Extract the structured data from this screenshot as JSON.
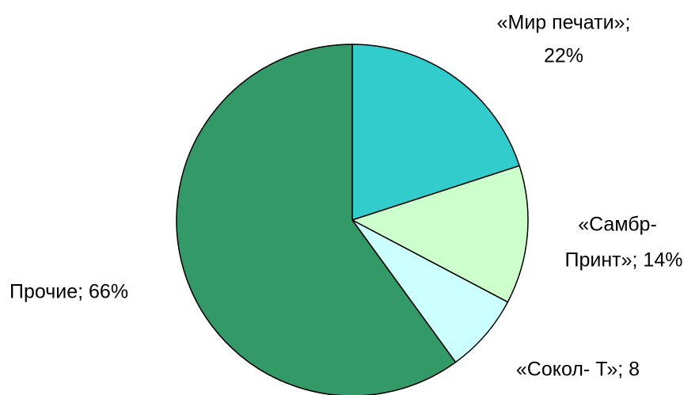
{
  "chart_data": {
    "type": "pie",
    "categories": [
      "«Мир печати»",
      "«Самбр-Принт»",
      "«Сокол- Т»",
      "Прочие"
    ],
    "values": [
      22,
      14,
      8,
      66
    ],
    "labels": [
      [
        "«Мир печати»;",
        "22%"
      ],
      [
        "«Самбр-",
        "Принт»; 14%"
      ],
      [
        "«Сокол- Т»; 8"
      ],
      [
        "Прочие; 66%"
      ]
    ],
    "colors": [
      "#33cccc",
      "#ccffcc",
      "#ccffff",
      "#339966"
    ]
  }
}
